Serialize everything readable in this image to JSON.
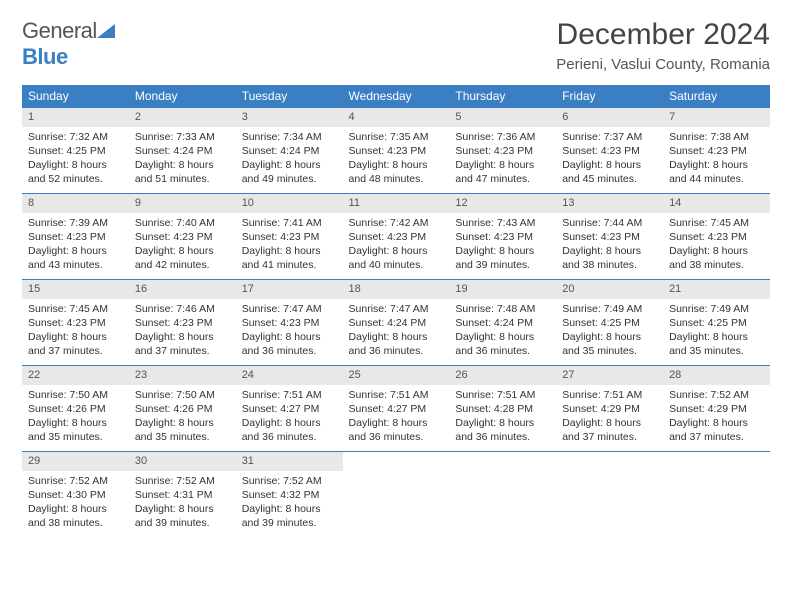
{
  "logo": {
    "word1": "General",
    "word2": "Blue"
  },
  "title": "December 2024",
  "location": "Perieni, Vaslui County, Romania",
  "colors": {
    "header_bg": "#3a7fc4",
    "header_text": "#ffffff",
    "daynum_bg": "#e8e8e8",
    "row_border": "#3a7fc4",
    "text": "#333333",
    "background": "#ffffff"
  },
  "weekdays": [
    "Sunday",
    "Monday",
    "Tuesday",
    "Wednesday",
    "Thursday",
    "Friday",
    "Saturday"
  ],
  "weeks": [
    [
      {
        "day": 1,
        "sunrise": "7:32 AM",
        "sunset": "4:25 PM",
        "daylight": "8 hours and 52 minutes."
      },
      {
        "day": 2,
        "sunrise": "7:33 AM",
        "sunset": "4:24 PM",
        "daylight": "8 hours and 51 minutes."
      },
      {
        "day": 3,
        "sunrise": "7:34 AM",
        "sunset": "4:24 PM",
        "daylight": "8 hours and 49 minutes."
      },
      {
        "day": 4,
        "sunrise": "7:35 AM",
        "sunset": "4:23 PM",
        "daylight": "8 hours and 48 minutes."
      },
      {
        "day": 5,
        "sunrise": "7:36 AM",
        "sunset": "4:23 PM",
        "daylight": "8 hours and 47 minutes."
      },
      {
        "day": 6,
        "sunrise": "7:37 AM",
        "sunset": "4:23 PM",
        "daylight": "8 hours and 45 minutes."
      },
      {
        "day": 7,
        "sunrise": "7:38 AM",
        "sunset": "4:23 PM",
        "daylight": "8 hours and 44 minutes."
      }
    ],
    [
      {
        "day": 8,
        "sunrise": "7:39 AM",
        "sunset": "4:23 PM",
        "daylight": "8 hours and 43 minutes."
      },
      {
        "day": 9,
        "sunrise": "7:40 AM",
        "sunset": "4:23 PM",
        "daylight": "8 hours and 42 minutes."
      },
      {
        "day": 10,
        "sunrise": "7:41 AM",
        "sunset": "4:23 PM",
        "daylight": "8 hours and 41 minutes."
      },
      {
        "day": 11,
        "sunrise": "7:42 AM",
        "sunset": "4:23 PM",
        "daylight": "8 hours and 40 minutes."
      },
      {
        "day": 12,
        "sunrise": "7:43 AM",
        "sunset": "4:23 PM",
        "daylight": "8 hours and 39 minutes."
      },
      {
        "day": 13,
        "sunrise": "7:44 AM",
        "sunset": "4:23 PM",
        "daylight": "8 hours and 38 minutes."
      },
      {
        "day": 14,
        "sunrise": "7:45 AM",
        "sunset": "4:23 PM",
        "daylight": "8 hours and 38 minutes."
      }
    ],
    [
      {
        "day": 15,
        "sunrise": "7:45 AM",
        "sunset": "4:23 PM",
        "daylight": "8 hours and 37 minutes."
      },
      {
        "day": 16,
        "sunrise": "7:46 AM",
        "sunset": "4:23 PM",
        "daylight": "8 hours and 37 minutes."
      },
      {
        "day": 17,
        "sunrise": "7:47 AM",
        "sunset": "4:23 PM",
        "daylight": "8 hours and 36 minutes."
      },
      {
        "day": 18,
        "sunrise": "7:47 AM",
        "sunset": "4:24 PM",
        "daylight": "8 hours and 36 minutes."
      },
      {
        "day": 19,
        "sunrise": "7:48 AM",
        "sunset": "4:24 PM",
        "daylight": "8 hours and 36 minutes."
      },
      {
        "day": 20,
        "sunrise": "7:49 AM",
        "sunset": "4:25 PM",
        "daylight": "8 hours and 35 minutes."
      },
      {
        "day": 21,
        "sunrise": "7:49 AM",
        "sunset": "4:25 PM",
        "daylight": "8 hours and 35 minutes."
      }
    ],
    [
      {
        "day": 22,
        "sunrise": "7:50 AM",
        "sunset": "4:26 PM",
        "daylight": "8 hours and 35 minutes."
      },
      {
        "day": 23,
        "sunrise": "7:50 AM",
        "sunset": "4:26 PM",
        "daylight": "8 hours and 35 minutes."
      },
      {
        "day": 24,
        "sunrise": "7:51 AM",
        "sunset": "4:27 PM",
        "daylight": "8 hours and 36 minutes."
      },
      {
        "day": 25,
        "sunrise": "7:51 AM",
        "sunset": "4:27 PM",
        "daylight": "8 hours and 36 minutes."
      },
      {
        "day": 26,
        "sunrise": "7:51 AM",
        "sunset": "4:28 PM",
        "daylight": "8 hours and 36 minutes."
      },
      {
        "day": 27,
        "sunrise": "7:51 AM",
        "sunset": "4:29 PM",
        "daylight": "8 hours and 37 minutes."
      },
      {
        "day": 28,
        "sunrise": "7:52 AM",
        "sunset": "4:29 PM",
        "daylight": "8 hours and 37 minutes."
      }
    ],
    [
      {
        "day": 29,
        "sunrise": "7:52 AM",
        "sunset": "4:30 PM",
        "daylight": "8 hours and 38 minutes."
      },
      {
        "day": 30,
        "sunrise": "7:52 AM",
        "sunset": "4:31 PM",
        "daylight": "8 hours and 39 minutes."
      },
      {
        "day": 31,
        "sunrise": "7:52 AM",
        "sunset": "4:32 PM",
        "daylight": "8 hours and 39 minutes."
      },
      null,
      null,
      null,
      null
    ]
  ],
  "labels": {
    "sunrise": "Sunrise:",
    "sunset": "Sunset:",
    "daylight": "Daylight:"
  }
}
